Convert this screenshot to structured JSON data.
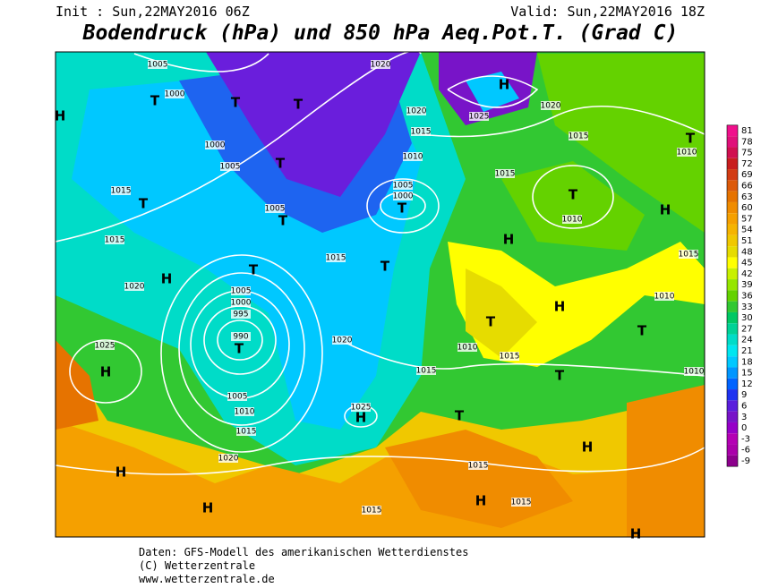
{
  "header": {
    "init": "Init : Sun,22MAY2016 06Z",
    "valid": "Valid: Sun,22MAY2016 18Z",
    "title": "Bodendruck (hPa) und 850 hPa Aeq.Pot.T. (Grad C)"
  },
  "colorbar": {
    "labels": [
      81,
      78,
      75,
      72,
      69,
      66,
      63,
      60,
      57,
      54,
      51,
      48,
      45,
      42,
      39,
      36,
      33,
      30,
      27,
      24,
      21,
      18,
      15,
      12,
      9,
      6,
      3,
      0,
      -3,
      -6,
      -9
    ],
    "colors": [
      "#f0108c",
      "#e0107a",
      "#d01050",
      "#c81e1e",
      "#d23c14",
      "#dc5a0a",
      "#e67300",
      "#f08c00",
      "#f5a000",
      "#f5b400",
      "#f0c800",
      "#e6dc00",
      "#ffff00",
      "#c8f000",
      "#96e600",
      "#64d200",
      "#32c832",
      "#00c864",
      "#00d296",
      "#00dcc8",
      "#00e6f0",
      "#00c8ff",
      "#0096ff",
      "#0064ff",
      "#1e32f0",
      "#5a1edc",
      "#7814c8",
      "#9600c8",
      "#b400b4",
      "#aa00aa",
      "#8c008c"
    ]
  },
  "map": {
    "markers": [
      "H",
      "H",
      "H",
      "H",
      "H",
      "H",
      "H",
      "H",
      "H",
      "H",
      "H",
      "H",
      "H",
      "T",
      "T",
      "T",
      "T",
      "T",
      "T",
      "T",
      "T",
      "T",
      "T",
      "T",
      "T",
      "T",
      "T",
      "T",
      "T"
    ],
    "isobar_labels": [
      "1005",
      "1000",
      "1000",
      "1005",
      "1005",
      "1015",
      "1015",
      "1020",
      "1025",
      "1005",
      "1000",
      "995",
      "990",
      "1005",
      "1010",
      "1015",
      "1020",
      "1020",
      "1020",
      "1015",
      "1025",
      "1020",
      "1010",
      "1005",
      "1000",
      "1015",
      "1020",
      "1015",
      "1025",
      "1010",
      "1015",
      "1015",
      "1015",
      "1010",
      "1015",
      "1010",
      "1010",
      "1010",
      "1015",
      "1015",
      "1015"
    ]
  },
  "footer": {
    "source": "Daten: GFS-Modell des amerikanischen Wetterdienstes",
    "copyright": "(C) Wetterzentrale",
    "url": "www.wetterzentrale.de"
  }
}
